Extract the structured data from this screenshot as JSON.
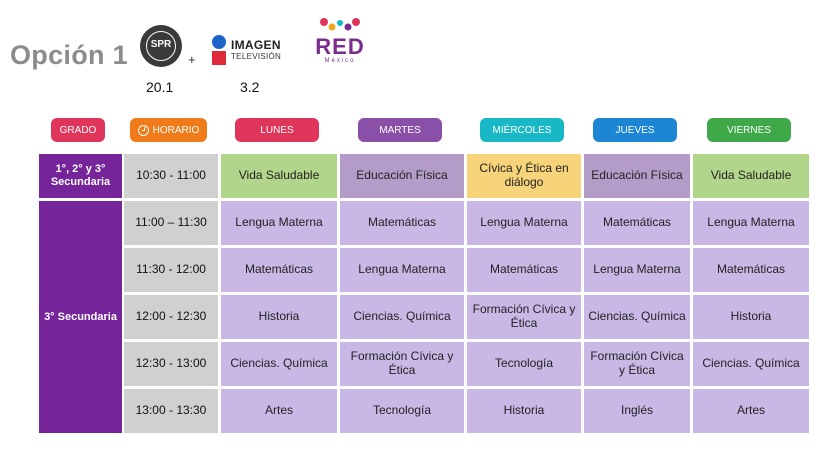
{
  "header": {
    "title": "Opción 1",
    "channels": [
      {
        "logo": "SPR",
        "number": "20.1"
      },
      {
        "logo_line1": "IMAGEN",
        "logo_line2": "TELEVISIÓN",
        "number": "3.2"
      },
      {
        "logo_line1": "RED",
        "logo_line2": "México"
      }
    ],
    "plus": "+"
  },
  "columns": {
    "grado": "GRADO",
    "horario": "HORARIO",
    "days": [
      "LUNES",
      "MARTES",
      "MIÉRCOLES",
      "JUEVES",
      "VIERNES"
    ]
  },
  "colors": {
    "grado_header": "#e0355a",
    "horario_header": "#ef7b1a",
    "lunes": "#e0355a",
    "martes": "#8a4fa6",
    "miercoles": "#19b8c6",
    "jueves": "#1d86d4",
    "viernes": "#3fa94a",
    "grado_cell": "#76249a",
    "subject_cell": "#c9b7e6",
    "time_cell": "#d0d0d0"
  },
  "groups": [
    {
      "grado": "1°, 2° y 3° Secundaria",
      "rows": [
        {
          "time": "10:30 - 11:00",
          "subjects": [
            "Vida Saludable",
            "Educación Física",
            "Cívica y Ética en diálogo",
            "Educación Física",
            "Vida Saludable"
          ]
        }
      ]
    },
    {
      "grado": "3° Secundaria",
      "rows": [
        {
          "time": "11:00 – 11:30",
          "subjects": [
            "Lengua Materna",
            "Matemáticas",
            "Lengua Materna",
            "Matemáticas",
            "Lengua Materna"
          ]
        },
        {
          "time": "11:30 - 12:00",
          "subjects": [
            "Matemáticas",
            "Lengua Materna",
            "Matemáticas",
            "Lengua Materna",
            "Matemáticas"
          ]
        },
        {
          "time": "12:00 - 12:30",
          "subjects": [
            "Historia",
            "Ciencias. Química",
            "Formación Cívica y Ética",
            "Ciencias. Química",
            "Historia"
          ]
        },
        {
          "time": "12:30 - 13:00",
          "subjects": [
            "Ciencias. Química",
            "Formación Cívica y Ética",
            "Tecnología",
            "Formación Cívica y Ética",
            "Ciencias. Química"
          ]
        },
        {
          "time": "13:00 - 13:30",
          "subjects": [
            "Artes",
            "Tecnología",
            "Historia",
            "Inglés",
            "Artes"
          ]
        }
      ]
    }
  ]
}
